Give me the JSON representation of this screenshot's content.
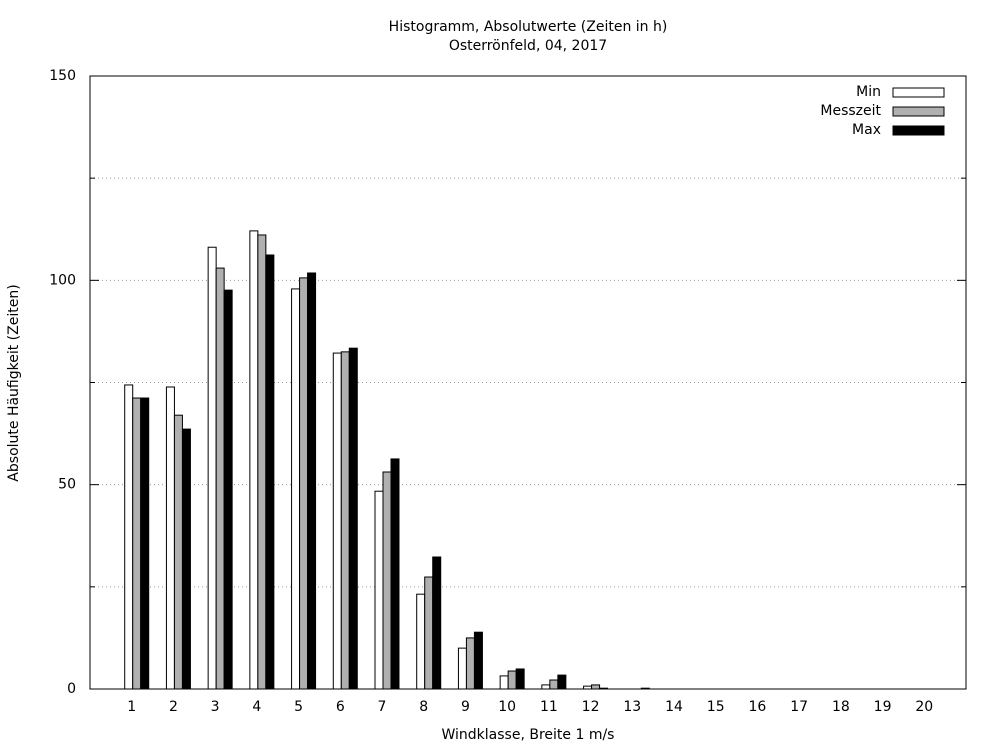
{
  "chart_data": {
    "type": "bar",
    "title": "Histogramm, Absolutwerte (Zeiten in h)",
    "subtitle": "Osterrönfeld, 04, 2017",
    "x_label": "Windklasse, Breite 1 m/s",
    "y_label": "Absolute Häufigkeit (Zeiten)",
    "categories": [
      "1",
      "2",
      "3",
      "4",
      "5",
      "6",
      "7",
      "8",
      "9",
      "10",
      "11",
      "12",
      "13",
      "14",
      "15",
      "16",
      "17",
      "18",
      "19",
      "20"
    ],
    "series": [
      {
        "name": "Min",
        "color": "#ffffff",
        "values": [
          74.4,
          73.9,
          108.1,
          112.1,
          97.9,
          82.2,
          48.4,
          23.2,
          10.0,
          3.2,
          1.0,
          0.7,
          0,
          0,
          0,
          0,
          0,
          0,
          0,
          0
        ]
      },
      {
        "name": "Messzeit",
        "color": "#b0b0b0",
        "values": [
          71.2,
          67.0,
          103.0,
          111.1,
          100.6,
          82.5,
          53.1,
          27.4,
          12.5,
          4.4,
          2.2,
          1.0,
          0,
          0,
          0,
          0,
          0,
          0,
          0,
          0
        ]
      },
      {
        "name": "Max",
        "color": "#000000",
        "values": [
          71.2,
          63.6,
          97.6,
          106.2,
          101.8,
          83.4,
          56.3,
          32.3,
          13.9,
          4.9,
          3.4,
          0.2,
          0.2,
          0,
          0,
          0,
          0,
          0,
          0,
          0
        ]
      }
    ],
    "ylim": [
      0,
      150
    ],
    "yticks": [
      0,
      50,
      100,
      150
    ],
    "yminorticks": [
      25,
      75,
      125
    ],
    "grid": true,
    "legend": "top-right"
  }
}
